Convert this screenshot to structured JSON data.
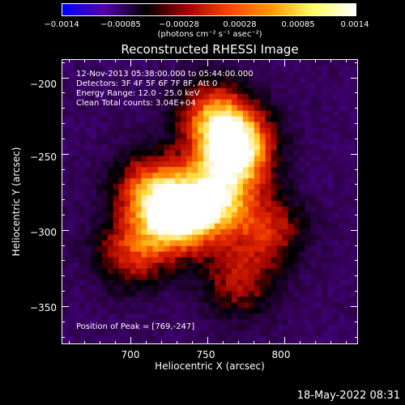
{
  "colorbar": {
    "tick_labels": [
      "−0.0014",
      "−0.00085",
      "−0.00028",
      "0.00028",
      "0.00085",
      "0.0014"
    ],
    "tick_values": [
      -0.0014,
      -0.00085,
      -0.00028,
      0.00028,
      0.00085,
      0.0014
    ],
    "units": "(photons cm⁻² s⁻¹ asec⁻²)",
    "range": [
      -0.0014,
      0.0014
    ],
    "colormap": [
      "#0000ff",
      "#5500aa",
      "#000000",
      "#aa0000",
      "#ff4400",
      "#ff9900",
      "#ffff66",
      "#ffffff"
    ]
  },
  "annotations": {
    "time_range": "12-Nov-2013 05:38:00.000 to 05:44:00.000",
    "detectors": "Detectors: 3F 4F 5F 6F 7F 8F, Att 0",
    "energy": "Energy Range: 12.0 - 25.0 keV",
    "clean": "Clean     Total counts: 3.04E+04",
    "peak": "Position of Peak = [769,-247]"
  },
  "stamp": "18-May-2022 08:31",
  "chart_data": {
    "type": "heatmap",
    "title": "Reconstructed RHESSI Image",
    "xlabel": "Heliocentric X (arcsec)",
    "ylabel": "Heliocentric Y (arcsec)",
    "xlim": [
      655,
      848
    ],
    "ylim": [
      -375,
      -188
    ],
    "x_ticks": [
      700,
      750,
      800
    ],
    "y_ticks": [
      -200,
      -250,
      -300,
      -350
    ],
    "x_tick_labels": [
      "700",
      "750",
      "800"
    ],
    "y_tick_labels": [
      "−200",
      "−250",
      "−300",
      "−350"
    ],
    "peak_position": [
      769,
      -247
    ],
    "sources": [
      {
        "x": 769,
        "y": -247,
        "peak": 0.0014
      },
      {
        "x": 730,
        "y": -292,
        "peak": 0.00125
      },
      {
        "x": 755,
        "y": -280,
        "peak": 0.0009
      },
      {
        "x": 755,
        "y": -225,
        "peak": 0.0007
      },
      {
        "x": 712,
        "y": -272,
        "peak": 0.0006
      },
      {
        "x": 700,
        "y": -315,
        "peak": 0.00045
      },
      {
        "x": 790,
        "y": -300,
        "peak": 0.0004
      },
      {
        "x": 770,
        "y": -335,
        "peak": 0.0003
      }
    ],
    "value_range": [
      -0.0014,
      0.0014
    ]
  }
}
